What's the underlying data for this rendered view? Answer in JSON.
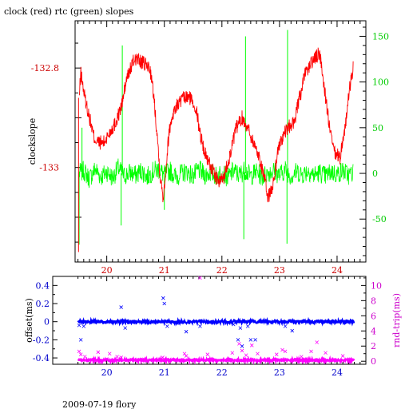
{
  "title": "clock (red) rtc (green) slopes",
  "footer": "2009-07-19 flory",
  "colors": {
    "axis": "#000000",
    "clock": "#ff0000",
    "rtc": "#00ff00",
    "offset": "#0000ff",
    "rndtrip": "#ff00ff",
    "tick_red": "#cc0000",
    "tick_green": "#00cc00",
    "tick_blue": "#0000cc",
    "tick_magenta": "#cc00cc"
  },
  "chart_data": [
    {
      "type": "line",
      "title": "clock (red) rtc (green) slopes",
      "xlim": [
        19.45,
        24.5
      ],
      "x_ticks": [
        20,
        21,
        22,
        23,
        24
      ],
      "x_tick_labels": [
        "20",
        "21",
        "22",
        "23",
        "24"
      ],
      "ylabel_left": "clockslope",
      "ylim_left": [
        -133.19,
        -132.705
      ],
      "y_ticks_left": [
        -132.8,
        -133
      ],
      "y_tick_labels_left": [
        "-132.8",
        "-133"
      ],
      "ylim_right": [
        -97,
        167
      ],
      "y_ticks_right": [
        150,
        100,
        50,
        0,
        -50
      ],
      "y_tick_labels_right": [
        "150",
        "100",
        "50",
        "0",
        "-50"
      ],
      "series": [
        {
          "name": "clock",
          "color": "#ff0000",
          "axis": "left",
          "points": [
            [
              19.52,
              -132.86
            ],
            [
              19.55,
              -132.81
            ],
            [
              19.62,
              -132.86
            ],
            [
              19.7,
              -132.9
            ],
            [
              19.78,
              -132.94
            ],
            [
              19.85,
              -132.95
            ],
            [
              19.95,
              -132.95
            ],
            [
              20.05,
              -132.93
            ],
            [
              20.15,
              -132.91
            ],
            [
              20.25,
              -132.88
            ],
            [
              20.35,
              -132.82
            ],
            [
              20.45,
              -132.79
            ],
            [
              20.5,
              -132.78
            ],
            [
              20.62,
              -132.79
            ],
            [
              20.75,
              -132.8
            ],
            [
              20.82,
              -132.86
            ],
            [
              20.88,
              -132.94
            ],
            [
              20.93,
              -133.02
            ],
            [
              20.98,
              -133.06
            ],
            [
              21.03,
              -133.0
            ],
            [
              21.08,
              -132.93
            ],
            [
              21.15,
              -132.89
            ],
            [
              21.25,
              -132.87
            ],
            [
              21.35,
              -132.86
            ],
            [
              21.45,
              -132.86
            ],
            [
              21.55,
              -132.88
            ],
            [
              21.62,
              -132.93
            ],
            [
              21.7,
              -132.97
            ],
            [
              21.78,
              -132.99
            ],
            [
              21.85,
              -133.01
            ],
            [
              21.95,
              -133.03
            ],
            [
              22.03,
              -133.02
            ],
            [
              22.15,
              -132.97
            ],
            [
              22.25,
              -132.92
            ],
            [
              22.35,
              -132.9
            ],
            [
              22.45,
              -132.92
            ],
            [
              22.55,
              -132.95
            ],
            [
              22.65,
              -132.98
            ],
            [
              22.72,
              -133.01
            ],
            [
              22.8,
              -133.06
            ],
            [
              22.88,
              -133.04
            ],
            [
              22.98,
              -132.96
            ],
            [
              23.05,
              -132.94
            ],
            [
              23.15,
              -132.92
            ],
            [
              23.25,
              -132.91
            ],
            [
              23.35,
              -132.86
            ],
            [
              23.45,
              -132.81
            ],
            [
              23.55,
              -132.79
            ],
            [
              23.62,
              -132.78
            ],
            [
              23.7,
              -132.77
            ],
            [
              23.78,
              -132.84
            ],
            [
              23.88,
              -132.93
            ],
            [
              23.95,
              -132.97
            ],
            [
              24.05,
              -132.98
            ],
            [
              24.15,
              -132.91
            ],
            [
              24.22,
              -132.84
            ],
            [
              24.28,
              -132.8
            ]
          ]
        },
        {
          "name": "rtc",
          "color": "#00ff00",
          "axis": "right",
          "points": [
            [
              19.52,
              0
            ],
            [
              19.6,
              3
            ],
            [
              19.7,
              -6
            ],
            [
              19.8,
              5
            ],
            [
              19.9,
              -4
            ],
            [
              20.0,
              2
            ],
            [
              20.1,
              -5
            ],
            [
              20.2,
              6
            ],
            [
              20.3,
              -3
            ],
            [
              20.4,
              1
            ],
            [
              20.5,
              -2
            ],
            [
              20.6,
              3
            ],
            [
              20.7,
              -4
            ],
            [
              20.8,
              2
            ],
            [
              20.9,
              5
            ],
            [
              21.0,
              -2
            ],
            [
              21.1,
              3
            ],
            [
              21.2,
              -4
            ],
            [
              21.3,
              0
            ],
            [
              21.4,
              2
            ],
            [
              21.5,
              -3
            ],
            [
              21.6,
              4
            ],
            [
              21.7,
              -2
            ],
            [
              21.8,
              1
            ],
            [
              21.9,
              -3
            ],
            [
              22.0,
              2
            ],
            [
              22.1,
              -5
            ],
            [
              22.2,
              3
            ],
            [
              22.3,
              -2
            ],
            [
              22.4,
              4
            ],
            [
              22.5,
              -3
            ],
            [
              22.6,
              2
            ],
            [
              22.7,
              -4
            ],
            [
              22.8,
              1
            ],
            [
              22.9,
              3
            ],
            [
              23.0,
              -2
            ],
            [
              23.1,
              4
            ],
            [
              23.2,
              -3
            ],
            [
              23.3,
              2
            ],
            [
              23.4,
              -1
            ],
            [
              23.5,
              3
            ],
            [
              23.6,
              -2
            ],
            [
              23.7,
              1
            ],
            [
              23.8,
              -3
            ],
            [
              23.9,
              2
            ],
            [
              24.0,
              -1
            ],
            [
              24.1,
              3
            ],
            [
              24.2,
              -2
            ],
            [
              24.28,
              1
            ]
          ],
          "spikes": [
            [
              19.52,
              -78
            ],
            [
              19.57,
              50
            ],
            [
              20.25,
              -57
            ],
            [
              20.27,
              140
            ],
            [
              21.0,
              -40
            ],
            [
              22.38,
              -72
            ],
            [
              22.41,
              150
            ],
            [
              23.13,
              -77
            ],
            [
              23.14,
              157
            ]
          ]
        }
      ]
    },
    {
      "type": "scatter",
      "xlim": [
        19.45,
        24.5
      ],
      "x_ticks": [
        20,
        21,
        22,
        23,
        24
      ],
      "x_tick_labels": [
        "20",
        "21",
        "22",
        "23",
        "24"
      ],
      "ylabel_left": "offset(ms)",
      "ylim_left": [
        -0.47,
        0.5
      ],
      "y_ticks_left": [
        0.4,
        0.2,
        0,
        -0.2,
        -0.4
      ],
      "y_tick_labels_left": [
        "0.4",
        "0.2",
        "0",
        "-0.2",
        "-0.4"
      ],
      "ylabel_right": "rnd-trip(ms)",
      "ylim_right": [
        -0.4,
        11.2
      ],
      "y_ticks_right": [
        10,
        8,
        6,
        4,
        2,
        0
      ],
      "y_tick_labels_right": [
        "10",
        "8",
        "6",
        "4",
        "2",
        "0"
      ],
      "series": [
        {
          "name": "offset",
          "color": "#0000ff",
          "axis": "left",
          "baseline": 0,
          "outliers": [
            [
              19.52,
              -0.04
            ],
            [
              19.55,
              -0.2
            ],
            [
              19.6,
              -0.05
            ],
            [
              20.25,
              0.16
            ],
            [
              20.32,
              -0.07
            ],
            [
              20.98,
              0.26
            ],
            [
              21.0,
              0.2
            ],
            [
              21.05,
              -0.05
            ],
            [
              21.38,
              -0.11
            ],
            [
              21.62,
              -0.05
            ],
            [
              22.2,
              -0.03
            ],
            [
              22.28,
              -0.2
            ],
            [
              22.35,
              -0.27
            ],
            [
              22.32,
              -0.07
            ],
            [
              22.45,
              -0.05
            ],
            [
              22.5,
              -0.2
            ],
            [
              22.58,
              -0.2
            ],
            [
              23.1,
              -0.05
            ],
            [
              23.22,
              -0.1
            ]
          ]
        },
        {
          "name": "rnd-trip",
          "color": "#ff00ff",
          "axis": "right",
          "baseline": 0.15,
          "outliers": [
            [
              19.52,
              1.3
            ],
            [
              19.55,
              0.9
            ],
            [
              19.62,
              0.6
            ],
            [
              19.85,
              1.2
            ],
            [
              20.05,
              1.0
            ],
            [
              20.18,
              0.6
            ],
            [
              20.25,
              0.5
            ],
            [
              20.97,
              0.5
            ],
            [
              21.0,
              0.3
            ],
            [
              21.35,
              1.0
            ],
            [
              21.38,
              0.7
            ],
            [
              21.62,
              11.0
            ],
            [
              21.75,
              0.9
            ],
            [
              22.18,
              1.1
            ],
            [
              22.3,
              2.3
            ],
            [
              22.35,
              1.4
            ],
            [
              22.42,
              0.8
            ],
            [
              22.52,
              2.1
            ],
            [
              22.62,
              1.0
            ],
            [
              22.95,
              0.9
            ],
            [
              23.05,
              1.5
            ],
            [
              23.1,
              1.3
            ],
            [
              23.38,
              0.6
            ],
            [
              23.55,
              1.3
            ],
            [
              23.65,
              2.5
            ],
            [
              23.8,
              1.1
            ],
            [
              24.1,
              0.7
            ]
          ]
        }
      ]
    }
  ]
}
